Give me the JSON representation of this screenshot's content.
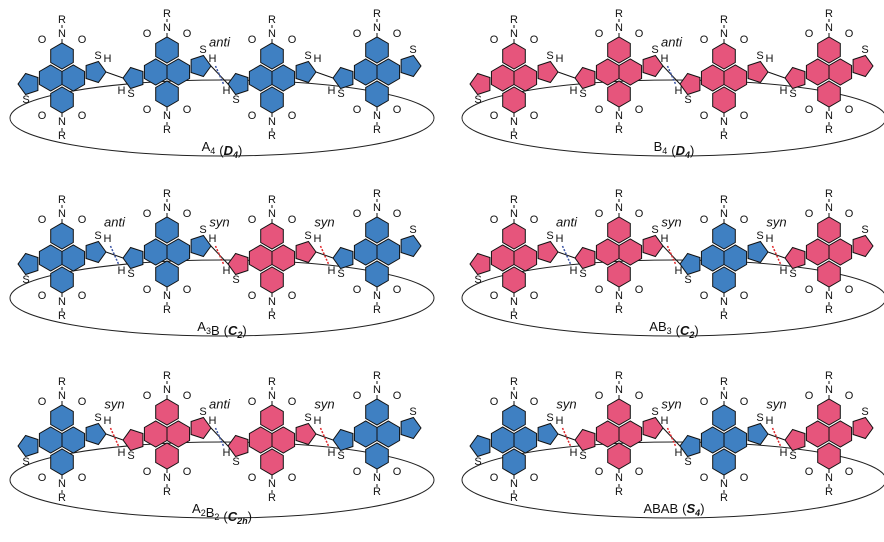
{
  "atoms": [
    "R",
    "N",
    "O",
    "S",
    "H"
  ],
  "bracket": [
    "(",
    ")"
  ],
  "panels": [
    {
      "label": {
        "name": [
          {
            "text": "A",
            "sub": "4"
          }
        ],
        "sym": {
          "text": "D",
          "sub": "4"
        }
      },
      "unit_colors": [
        "#3f80c2",
        "#3f80c2",
        "#3f80c2",
        "#3f80c2"
      ],
      "junctions": [
        null,
        {
          "text": "anti",
          "color": "#3a53a4"
        },
        null
      ]
    },
    {
      "label": {
        "name": [
          {
            "text": "B",
            "sub": "4"
          }
        ],
        "sym": {
          "text": "D",
          "sub": "4"
        }
      },
      "unit_colors": [
        "#e6557c",
        "#e6557c",
        "#e6557c",
        "#e6557c"
      ],
      "junctions": [
        null,
        {
          "text": "anti",
          "color": "#3a53a4"
        },
        null
      ]
    },
    {
      "label": {
        "name": [
          {
            "text": "A",
            "sub": "3"
          },
          {
            "text": "B"
          }
        ],
        "sym": {
          "text": "C",
          "sub": "2"
        }
      },
      "unit_colors": [
        "#3f80c2",
        "#3f80c2",
        "#e6557c",
        "#3f80c2"
      ],
      "junctions": [
        {
          "text": "anti",
          "color": "#3a53a4"
        },
        {
          "text": "syn",
          "color": "#e2272b"
        },
        {
          "text": "syn",
          "color": "#e2272b"
        }
      ]
    },
    {
      "label": {
        "name": [
          {
            "text": "A"
          },
          {
            "text": "B",
            "sub": "3"
          }
        ],
        "sym": {
          "text": "C",
          "sub": "2"
        }
      },
      "unit_colors": [
        "#e6557c",
        "#e6557c",
        "#3f80c2",
        "#e6557c"
      ],
      "junctions": [
        {
          "text": "anti",
          "color": "#3a53a4"
        },
        {
          "text": "syn",
          "color": "#e2272b"
        },
        {
          "text": "syn",
          "color": "#e2272b"
        }
      ]
    },
    {
      "label": {
        "name": [
          {
            "text": "A",
            "sub": "2"
          },
          {
            "text": "B",
            "sub": "2"
          }
        ],
        "sym": {
          "text": "C",
          "sub": "2h"
        }
      },
      "unit_colors": [
        "#3f80c2",
        "#e6557c",
        "#e6557c",
        "#3f80c2"
      ],
      "junctions": [
        {
          "text": "syn",
          "color": "#e2272b"
        },
        {
          "text": "anti",
          "color": "#3a53a4"
        },
        {
          "text": "syn",
          "color": "#e2272b"
        }
      ]
    },
    {
      "label": {
        "name": [
          {
            "text": "ABAB"
          }
        ],
        "sym": {
          "text": "S",
          "sub": "4"
        }
      },
      "unit_colors": [
        "#3f80c2",
        "#e6557c",
        "#3f80c2",
        "#e6557c"
      ],
      "junctions": [
        {
          "text": "syn",
          "color": "#e2272b"
        },
        {
          "text": "syn",
          "color": "#e2272b"
        },
        {
          "text": "syn",
          "color": "#e2272b"
        }
      ]
    }
  ]
}
